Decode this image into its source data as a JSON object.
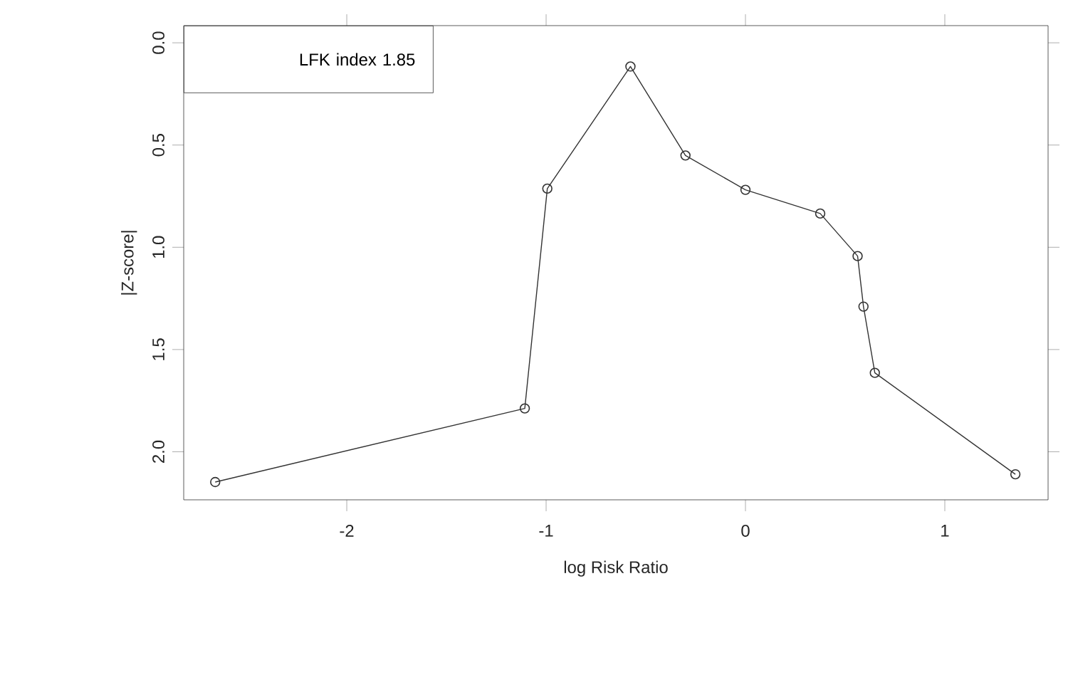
{
  "chart_data": {
    "type": "line",
    "xlabel": "log Risk Ratio",
    "ylabel": "|Z-score|",
    "x": [
      -2.66,
      -1.107,
      -0.994,
      -0.577,
      -0.301,
      0.0,
      0.375,
      0.5625,
      0.592,
      0.649,
      1.354
    ],
    "series": [
      {
        "color": "#333333",
        "values": [
          2.148,
          1.788,
          0.713,
          0.116,
          0.551,
          0.719,
          0.835,
          1.043,
          1.29,
          1.614,
          2.11
        ]
      }
    ],
    "xlim": [
      -2.818,
      1.518
    ],
    "ylim": [
      2.235,
      -0.084
    ],
    "xticks": [
      -2,
      -1,
      0,
      1
    ],
    "yticks": [
      {
        "value": 0,
        "label": "0.0"
      },
      {
        "value": 0.5,
        "label": "0.5"
      },
      {
        "value": 1,
        "label": "1.0"
      },
      {
        "value": 1.5,
        "label": "1.5"
      },
      {
        "value": 2,
        "label": "2.0"
      }
    ],
    "marker": "circle",
    "line_style": "solid",
    "annotations": [
      "LFK index 1.85"
    ]
  }
}
